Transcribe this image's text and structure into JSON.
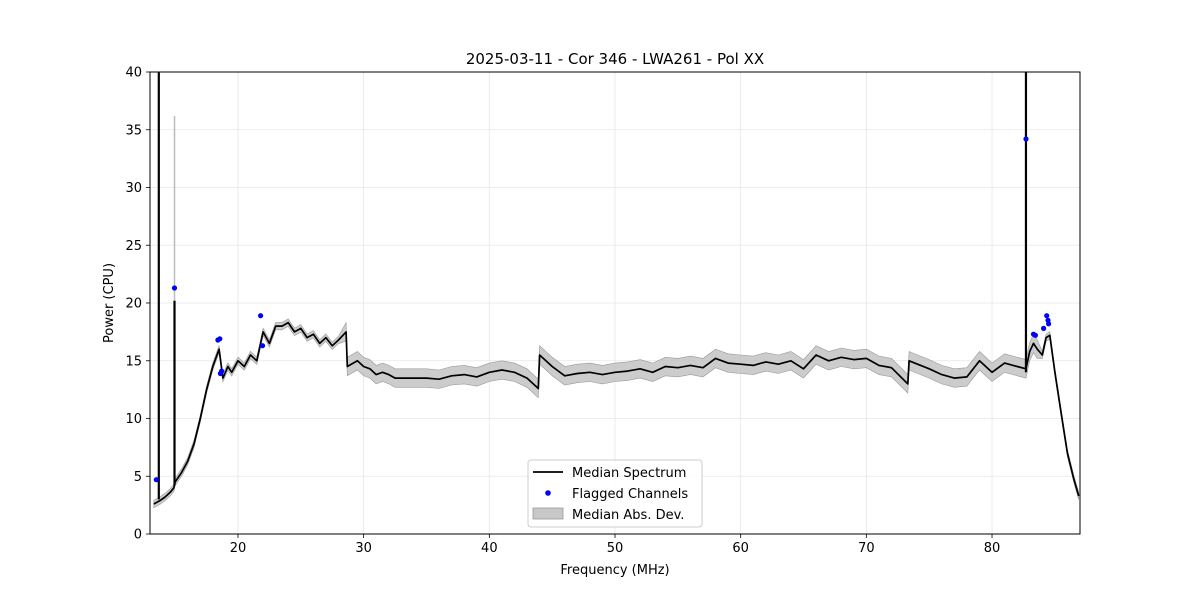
{
  "chart_data": {
    "type": "line",
    "title": "2025-03-11 - Cor 346 - LWA261 - Pol XX",
    "xlabel": "Frequency (MHz)",
    "ylabel": "Power (CPU)",
    "xlim": [
      13,
      87
    ],
    "ylim": [
      0,
      40
    ],
    "xticks": [
      20,
      30,
      40,
      50,
      60,
      70,
      80
    ],
    "yticks": [
      0,
      5,
      10,
      15,
      20,
      25,
      30,
      35,
      40
    ],
    "grid": true,
    "legend_position": "bottom-center",
    "series": [
      {
        "name": "Median Spectrum",
        "kind": "line",
        "color": "#000000",
        "x": [
          13.3,
          13.8,
          14.2,
          14.6,
          14.9,
          15.0,
          15.5,
          16.0,
          16.5,
          17.0,
          17.5,
          18.0,
          18.5,
          18.8,
          19.2,
          19.5,
          20.0,
          20.5,
          21.0,
          21.5,
          22.0,
          22.5,
          23.0,
          23.5,
          24.0,
          24.5,
          25.0,
          25.5,
          26.0,
          26.5,
          27.0,
          27.5,
          28.0,
          28.6,
          28.7,
          29.5,
          30.0,
          30.5,
          31.0,
          31.5,
          32.0,
          32.5,
          33.0,
          34.0,
          35.0,
          36.0,
          37.0,
          38.0,
          39.0,
          40.0,
          41.0,
          42.0,
          43.0,
          43.9,
          44.0,
          45.0,
          46.0,
          47.0,
          48.0,
          49.0,
          50.0,
          51.0,
          52.0,
          53.0,
          54.0,
          55.0,
          56.0,
          57.0,
          58.0,
          59.0,
          60.0,
          61.0,
          62.0,
          63.0,
          64.0,
          65.0,
          66.0,
          67.0,
          68.0,
          69.0,
          70.0,
          71.0,
          72.0,
          73.3,
          73.4,
          75.0,
          76.0,
          77.0,
          78.0,
          79.0,
          80.0,
          81.0,
          82.0,
          82.7,
          83.0,
          83.3,
          83.6,
          84.0,
          84.3,
          84.6,
          85.0,
          85.5,
          86.0,
          86.5,
          86.9
        ],
        "values": [
          2.6,
          2.9,
          3.2,
          3.6,
          4.0,
          4.5,
          5.3,
          6.3,
          7.8,
          10.0,
          12.5,
          14.5,
          16.0,
          13.5,
          14.5,
          14.0,
          15.0,
          14.5,
          15.5,
          15.0,
          17.5,
          16.5,
          18.0,
          18.0,
          18.3,
          17.5,
          17.8,
          17.0,
          17.3,
          16.5,
          17.0,
          16.3,
          16.8,
          17.5,
          14.5,
          15.0,
          14.5,
          14.3,
          13.8,
          14.0,
          13.8,
          13.5,
          13.5,
          13.5,
          13.5,
          13.4,
          13.7,
          13.8,
          13.6,
          14.0,
          14.2,
          14.0,
          13.5,
          12.6,
          15.5,
          14.5,
          13.7,
          13.9,
          14.0,
          13.8,
          14.0,
          14.1,
          14.3,
          14.0,
          14.5,
          14.4,
          14.6,
          14.4,
          15.2,
          14.8,
          14.7,
          14.6,
          14.9,
          14.7,
          15.0,
          14.3,
          15.5,
          15.0,
          15.3,
          15.1,
          15.2,
          14.6,
          14.4,
          13.0,
          15.0,
          14.3,
          13.8,
          13.5,
          13.6,
          15.0,
          14.0,
          14.8,
          14.5,
          14.3,
          15.8,
          16.5,
          16.0,
          15.5,
          17.0,
          17.2,
          14.0,
          10.5,
          7.0,
          4.8,
          3.3
        ],
        "spikes": [
          {
            "x": 13.7,
            "from": 3.0,
            "to": 40
          },
          {
            "x": 14.95,
            "from": 4.2,
            "to": 20.2
          },
          {
            "x": 82.7,
            "from": 14.0,
            "to": 40
          }
        ]
      },
      {
        "name": "Flagged Channels",
        "kind": "scatter",
        "color": "#0000ff",
        "x": [
          13.5,
          14.95,
          18.4,
          18.55,
          18.6,
          18.7,
          21.8,
          21.95,
          82.7,
          83.3,
          83.45,
          84.1,
          84.35,
          84.45,
          84.5
        ],
        "values": [
          4.7,
          21.3,
          16.8,
          16.9,
          13.9,
          14.1,
          18.9,
          16.3,
          34.2,
          17.3,
          17.2,
          17.8,
          18.9,
          18.5,
          18.2
        ]
      },
      {
        "name": "Median Abs. Dev.",
        "kind": "band",
        "color": "#bfbfbf",
        "spread": 0.8
      }
    ]
  }
}
